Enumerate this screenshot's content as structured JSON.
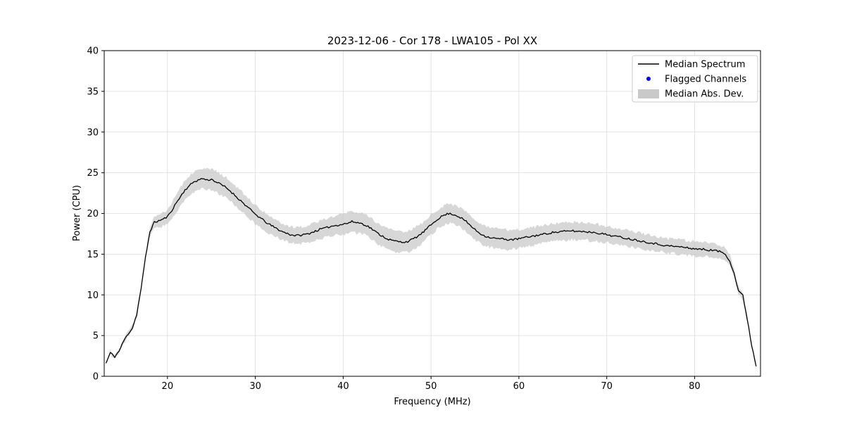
{
  "page": {
    "background": "#ffffff"
  },
  "chart_data": {
    "type": "line",
    "title": "2023-12-06 - Cor 178 - LWA105 - Pol XX",
    "xlabel": "Frequency (MHz)",
    "ylabel": "Power (CPU)",
    "xlim": [
      12.8,
      87.5
    ],
    "ylim": [
      0,
      40
    ],
    "xticks": [
      20,
      30,
      40,
      50,
      60,
      70,
      80
    ],
    "yticks": [
      0,
      5,
      10,
      15,
      20,
      25,
      30,
      35,
      40
    ],
    "grid": true,
    "grid_color": "#dcdcdc",
    "legend_position": "upper right",
    "noise_amplitude": 0.12,
    "band_noise_amplitude": 0.2,
    "noise_seed": 11,
    "series": [
      {
        "name": "Median Spectrum",
        "type": "line",
        "color": "#000000"
      },
      {
        "name": "Flagged Channels",
        "type": "scatter",
        "color": "#0000ff",
        "points": []
      },
      {
        "name": "Median Abs. Dev.",
        "type": "band",
        "color": "#c9c9c9"
      }
    ],
    "points": [
      [
        13.0,
        1.6,
        0.2
      ],
      [
        13.5,
        2.9,
        0.25
      ],
      [
        14.0,
        2.4,
        0.2
      ],
      [
        14.5,
        3.1,
        0.25
      ],
      [
        15.0,
        4.3,
        0.3
      ],
      [
        15.5,
        5.2,
        0.3
      ],
      [
        16.0,
        5.9,
        0.3
      ],
      [
        16.5,
        7.6,
        0.35
      ],
      [
        17.0,
        10.8,
        0.4
      ],
      [
        17.5,
        14.6,
        0.45
      ],
      [
        18.0,
        17.8,
        0.6
      ],
      [
        18.5,
        18.9,
        0.7
      ],
      [
        19.0,
        19.1,
        0.8
      ],
      [
        19.5,
        19.3,
        0.85
      ],
      [
        20.0,
        19.6,
        0.9
      ],
      [
        20.5,
        20.4,
        1.0
      ],
      [
        21.0,
        21.3,
        1.1
      ],
      [
        21.5,
        22.1,
        1.15
      ],
      [
        22.0,
        22.9,
        1.2
      ],
      [
        22.5,
        23.4,
        1.25
      ],
      [
        23.0,
        23.9,
        1.3
      ],
      [
        23.5,
        24.1,
        1.3
      ],
      [
        24.0,
        24.3,
        1.3
      ],
      [
        24.5,
        24.1,
        1.3
      ],
      [
        25.0,
        24.2,
        1.3
      ],
      [
        25.5,
        23.9,
        1.3
      ],
      [
        26.0,
        23.6,
        1.25
      ],
      [
        26.5,
        23.3,
        1.25
      ],
      [
        27.0,
        22.9,
        1.2
      ],
      [
        27.5,
        22.4,
        1.2
      ],
      [
        28.0,
        21.9,
        1.2
      ],
      [
        28.5,
        21.4,
        1.2
      ],
      [
        29.0,
        20.9,
        1.2
      ],
      [
        29.5,
        20.4,
        1.15
      ],
      [
        30.0,
        19.9,
        1.15
      ],
      [
        30.5,
        19.5,
        1.1
      ],
      [
        31.0,
        19.1,
        1.1
      ],
      [
        31.5,
        18.7,
        1.1
      ],
      [
        32.0,
        18.4,
        1.05
      ],
      [
        32.5,
        18.1,
        1.05
      ],
      [
        33.0,
        17.8,
        1.0
      ],
      [
        33.5,
        17.6,
        1.0
      ],
      [
        34.0,
        17.4,
        1.0
      ],
      [
        34.5,
        17.3,
        1.0
      ],
      [
        35.0,
        17.3,
        1.0
      ],
      [
        35.5,
        17.4,
        1.05
      ],
      [
        36.0,
        17.5,
        1.05
      ],
      [
        36.5,
        17.7,
        1.1
      ],
      [
        37.0,
        17.9,
        1.1
      ],
      [
        37.5,
        18.1,
        1.15
      ],
      [
        38.0,
        18.2,
        1.15
      ],
      [
        38.5,
        18.4,
        1.2
      ],
      [
        39.0,
        18.5,
        1.2
      ],
      [
        39.5,
        18.6,
        1.25
      ],
      [
        40.0,
        18.7,
        1.25
      ],
      [
        40.5,
        18.8,
        1.3
      ],
      [
        41.0,
        19.0,
        1.3
      ],
      [
        41.5,
        18.9,
        1.3
      ],
      [
        42.0,
        18.8,
        1.3
      ],
      [
        42.5,
        18.6,
        1.25
      ],
      [
        43.0,
        18.3,
        1.25
      ],
      [
        43.5,
        17.9,
        1.25
      ],
      [
        44.0,
        17.5,
        1.3
      ],
      [
        44.5,
        17.2,
        1.3
      ],
      [
        45.0,
        16.9,
        1.3
      ],
      [
        45.5,
        16.7,
        1.3
      ],
      [
        46.0,
        16.6,
        1.3
      ],
      [
        46.5,
        16.5,
        1.3
      ],
      [
        47.0,
        16.5,
        1.3
      ],
      [
        47.5,
        16.6,
        1.3
      ],
      [
        48.0,
        16.9,
        1.25
      ],
      [
        48.5,
        17.2,
        1.25
      ],
      [
        49.0,
        17.6,
        1.2
      ],
      [
        49.5,
        18.1,
        1.2
      ],
      [
        50.0,
        18.6,
        1.2
      ],
      [
        50.5,
        19.1,
        1.2
      ],
      [
        51.0,
        19.5,
        1.2
      ],
      [
        51.5,
        19.8,
        1.2
      ],
      [
        52.0,
        20.0,
        1.2
      ],
      [
        52.5,
        19.9,
        1.2
      ],
      [
        53.0,
        19.7,
        1.2
      ],
      [
        53.5,
        19.4,
        1.2
      ],
      [
        54.0,
        19.0,
        1.2
      ],
      [
        54.5,
        18.5,
        1.2
      ],
      [
        55.0,
        18.0,
        1.2
      ],
      [
        55.5,
        17.6,
        1.2
      ],
      [
        56.0,
        17.3,
        1.2
      ],
      [
        56.5,
        17.1,
        1.2
      ],
      [
        57.0,
        17.0,
        1.2
      ],
      [
        57.5,
        16.9,
        1.2
      ],
      [
        58.0,
        16.9,
        1.2
      ],
      [
        58.5,
        16.8,
        1.2
      ],
      [
        59.0,
        16.8,
        1.2
      ],
      [
        59.5,
        16.8,
        1.2
      ],
      [
        60.0,
        16.9,
        1.15
      ],
      [
        60.5,
        17.0,
        1.15
      ],
      [
        61.0,
        17.1,
        1.15
      ],
      [
        61.5,
        17.2,
        1.1
      ],
      [
        62.0,
        17.3,
        1.1
      ],
      [
        62.5,
        17.4,
        1.1
      ],
      [
        63.0,
        17.5,
        1.1
      ],
      [
        63.5,
        17.6,
        1.1
      ],
      [
        64.0,
        17.7,
        1.1
      ],
      [
        64.5,
        17.7,
        1.1
      ],
      [
        65.0,
        17.8,
        1.1
      ],
      [
        65.5,
        17.8,
        1.1
      ],
      [
        66.0,
        17.9,
        1.1
      ],
      [
        66.5,
        17.8,
        1.1
      ],
      [
        67.0,
        17.8,
        1.1
      ],
      [
        67.5,
        17.8,
        1.05
      ],
      [
        68.0,
        17.7,
        1.05
      ],
      [
        68.5,
        17.7,
        1.05
      ],
      [
        69.0,
        17.6,
        1.05
      ],
      [
        69.5,
        17.5,
        1.0
      ],
      [
        70.0,
        17.4,
        1.0
      ],
      [
        70.5,
        17.3,
        1.0
      ],
      [
        71.0,
        17.2,
        1.0
      ],
      [
        71.5,
        17.1,
        1.0
      ],
      [
        72.0,
        17.0,
        1.0
      ],
      [
        72.5,
        16.9,
        1.0
      ],
      [
        73.0,
        16.8,
        1.0
      ],
      [
        73.5,
        16.7,
        1.0
      ],
      [
        74.0,
        16.6,
        0.95
      ],
      [
        74.5,
        16.5,
        0.95
      ],
      [
        75.0,
        16.4,
        0.95
      ],
      [
        75.5,
        16.3,
        0.95
      ],
      [
        76.0,
        16.2,
        0.9
      ],
      [
        76.5,
        16.1,
        0.9
      ],
      [
        77.0,
        16.0,
        0.9
      ],
      [
        77.5,
        16.0,
        0.9
      ],
      [
        78.0,
        15.9,
        0.9
      ],
      [
        78.5,
        15.9,
        0.9
      ],
      [
        79.0,
        15.8,
        0.9
      ],
      [
        79.5,
        15.7,
        0.9
      ],
      [
        80.0,
        15.7,
        0.9
      ],
      [
        80.5,
        15.6,
        0.9
      ],
      [
        81.0,
        15.6,
        0.9
      ],
      [
        81.5,
        15.5,
        0.85
      ],
      [
        82.0,
        15.5,
        0.85
      ],
      [
        82.5,
        15.4,
        0.8
      ],
      [
        83.0,
        15.3,
        0.8
      ],
      [
        83.5,
        15.0,
        0.75
      ],
      [
        84.0,
        14.2,
        0.7
      ],
      [
        84.5,
        12.6,
        0.6
      ],
      [
        85.0,
        10.5,
        0.5
      ],
      [
        85.5,
        9.9,
        0.45
      ],
      [
        86.0,
        7.0,
        0.35
      ],
      [
        86.5,
        3.8,
        0.25
      ],
      [
        87.0,
        1.3,
        0.2
      ]
    ]
  }
}
